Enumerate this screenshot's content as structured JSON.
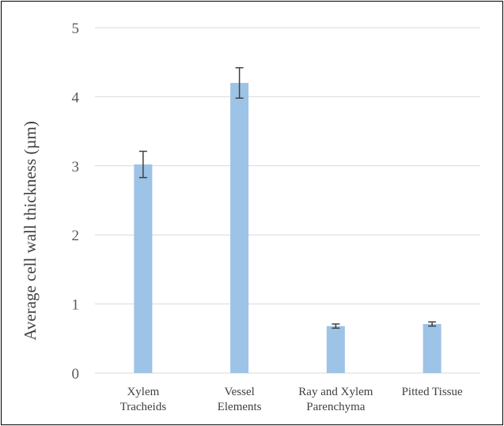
{
  "chart_data": {
    "type": "bar",
    "categories": [
      [
        "Xylem",
        "Tracheids"
      ],
      [
        "Vessel",
        "Elements"
      ],
      [
        "Ray and Xylem",
        "Parenchyma"
      ],
      [
        "Pitted Tissue"
      ]
    ],
    "values": [
      3.02,
      4.2,
      0.68,
      0.71
    ],
    "errors": [
      0.19,
      0.22,
      0.03,
      0.03
    ],
    "title": "",
    "xlabel": "",
    "ylabel": "Average cell wall thickness (µm)",
    "ylim": [
      0,
      5
    ],
    "yticks": [
      "0",
      "1",
      "2",
      "3",
      "4",
      "5"
    ],
    "grid": true,
    "bar_color": "#9DC3E6",
    "gridline_color": "#D9D9D9",
    "error_bar_color": "#404040"
  }
}
